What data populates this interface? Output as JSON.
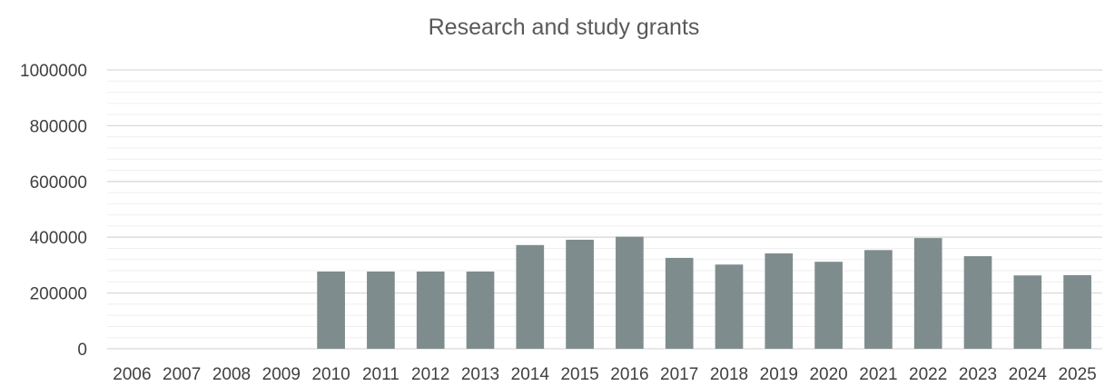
{
  "chart_data": {
    "type": "bar",
    "title": "Research and study grants",
    "xlabel": "",
    "ylabel": "",
    "categories": [
      "2006",
      "2007",
      "2008",
      "2009",
      "2010",
      "2011",
      "2012",
      "2013",
      "2014",
      "2015",
      "2016",
      "2017",
      "2018",
      "2019",
      "2020",
      "2021",
      "2022",
      "2023",
      "2024",
      "2025"
    ],
    "values": [
      0,
      0,
      0,
      0,
      277000,
      277000,
      277000,
      277000,
      372000,
      391000,
      402000,
      326000,
      302000,
      342000,
      312000,
      354000,
      397000,
      332000,
      263000,
      264000
    ],
    "ylim": [
      0,
      1000000
    ],
    "yticks": [
      "0",
      "200000",
      "400000",
      "600000",
      "800000",
      "1000000"
    ],
    "grid": true,
    "legend": "none",
    "bar_color": "#7f8c8d",
    "grid_color": "#d9d9d9",
    "minor_grid_color": "#efefef"
  }
}
